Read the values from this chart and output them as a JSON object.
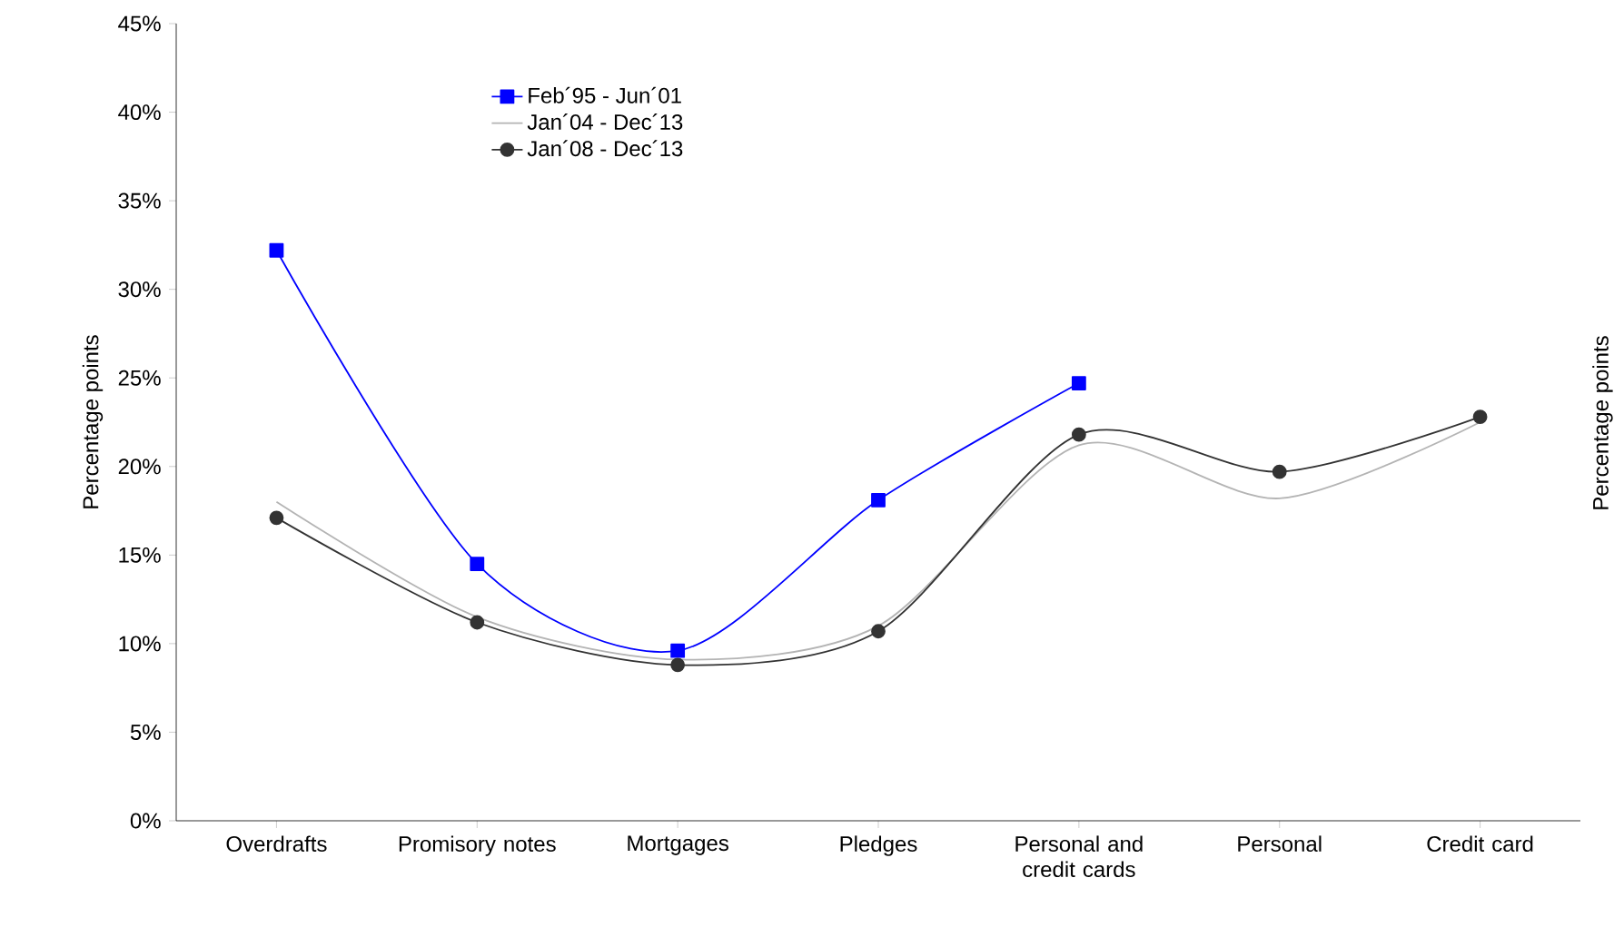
{
  "chart_data": {
    "type": "line",
    "ylabel": "Percentage points",
    "y2label": "Percentage points",
    "categories": [
      "Overdrafts",
      "Promisory notes",
      "Mortgages",
      "Pledges",
      "Personal and credit cards",
      "Personal",
      "Credit card"
    ],
    "ylim": [
      0,
      45
    ],
    "yticks": [
      {
        "value": 0,
        "label": "0%"
      },
      {
        "value": 5,
        "label": "5%"
      },
      {
        "value": 10,
        "label": "10%"
      },
      {
        "value": 15,
        "label": "15%"
      },
      {
        "value": 20,
        "label": "20%"
      },
      {
        "value": 25,
        "label": "25%"
      },
      {
        "value": 30,
        "label": "30%"
      },
      {
        "value": 35,
        "label": "35%"
      },
      {
        "value": 40,
        "label": "40%"
      },
      {
        "value": 45,
        "label": "45%"
      }
    ],
    "legend": "top left",
    "grid": false,
    "series": [
      {
        "name": "Feb´95 - Jun´01",
        "color": "#0000ff",
        "marker": "square",
        "values": [
          32.2,
          14.5,
          9.6,
          18.1,
          24.7,
          null,
          null
        ]
      },
      {
        "name": "Jan´04 - Dec´13",
        "color": "#b4b4b4",
        "marker": "none",
        "values": [
          18.0,
          11.5,
          9.1,
          11.0,
          21.2,
          18.2,
          22.5
        ]
      },
      {
        "name": "Jan´08 - Dec´13",
        "color": "#333333",
        "marker": "circle",
        "values": [
          17.1,
          11.2,
          8.8,
          10.7,
          21.8,
          19.7,
          22.8
        ]
      }
    ]
  }
}
